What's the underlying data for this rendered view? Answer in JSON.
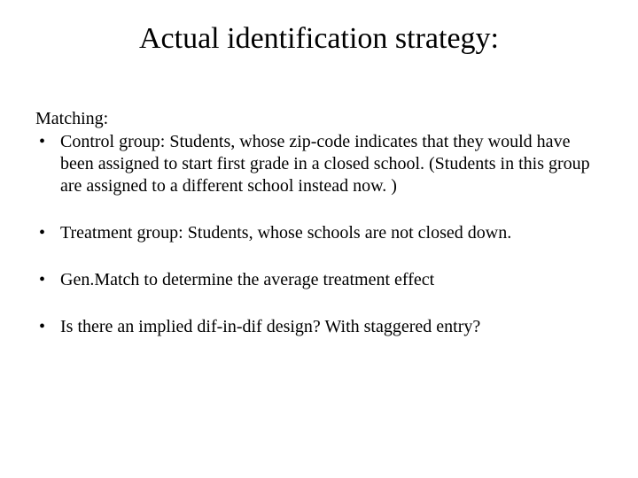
{
  "title": "Actual identification strategy:",
  "subheading": "Matching:",
  "bullets": [
    "Control group: Students, whose zip-code indicates that they would have been assigned to start first grade in a closed school. (Students in this group are assigned to a different school instead now. )",
    "Treatment group: Students, whose schools are not closed down.",
    "Gen.Match to determine the average treatment effect",
    "Is there an implied dif-in-dif design? With staggered entry?"
  ],
  "colors": {
    "background": "#ffffff",
    "text": "#000000"
  },
  "typography": {
    "font_family": "Georgia, serif",
    "title_fontsize": 34,
    "body_fontsize": 20
  }
}
